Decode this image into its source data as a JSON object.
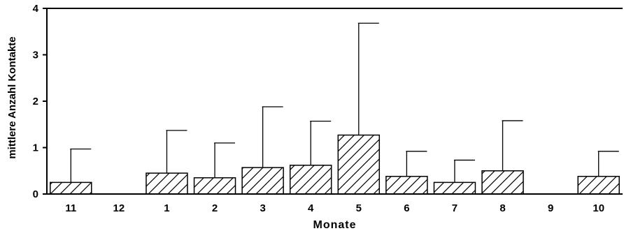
{
  "chart_data": {
    "type": "bar",
    "title": "",
    "xlabel": "Monate",
    "ylabel": "mittlere Anzahl Kontakte",
    "ylim": [
      0,
      4
    ],
    "yticks": [
      0,
      1,
      2,
      3,
      4
    ],
    "grid": false,
    "categories": [
      "11",
      "12",
      "1",
      "2",
      "3",
      "4",
      "5",
      "6",
      "7",
      "8",
      "9",
      "10"
    ],
    "values": [
      0.25,
      0,
      0.45,
      0.35,
      0.57,
      0.62,
      1.27,
      0.38,
      0.25,
      0.5,
      0,
      0.38
    ],
    "error_upper": [
      0.97,
      0,
      1.37,
      1.1,
      1.88,
      1.57,
      3.68,
      0.92,
      0.73,
      1.58,
      0,
      0.92
    ],
    "bar_style": "hatched"
  }
}
